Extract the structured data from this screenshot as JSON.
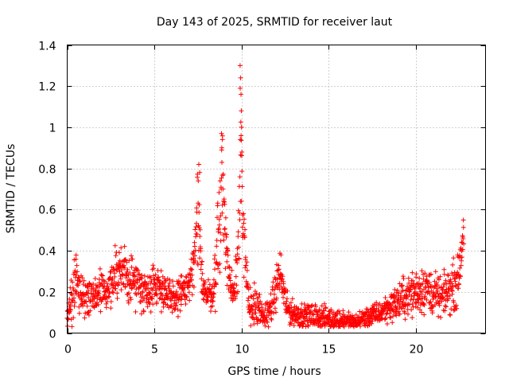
{
  "chart_data": {
    "type": "scatter",
    "title": "Day 143 of 2025, SRMTID for receiver laut",
    "xlabel": "GPS time / hours",
    "ylabel": "SRMTID / TECUs",
    "xlim": [
      0,
      24
    ],
    "ylim": [
      0,
      1.4
    ],
    "x_ticks": [
      0,
      5,
      10,
      15,
      20
    ],
    "y_ticks": [
      0,
      0.2,
      0.4,
      0.6,
      0.8,
      1,
      1.2,
      1.4
    ],
    "x_tick_labels": [
      "0",
      "5",
      "10",
      "15",
      "20"
    ],
    "y_tick_labels": [
      "0",
      "0.2",
      "0.4",
      "0.6",
      "0.8",
      "1",
      "1.2",
      "1.4"
    ],
    "grid": true,
    "marker": "plus",
    "color": "#ff0000",
    "series": [
      {
        "name": "SRMTID",
        "profile": [
          [
            0.0,
            0.08,
            0.07
          ],
          [
            0.3,
            0.15,
            0.1
          ],
          [
            0.5,
            0.3,
            0.12
          ],
          [
            0.7,
            0.22,
            0.08
          ],
          [
            1.0,
            0.17,
            0.06
          ],
          [
            1.5,
            0.18,
            0.06
          ],
          [
            2.0,
            0.2,
            0.07
          ],
          [
            2.5,
            0.25,
            0.08
          ],
          [
            3.0,
            0.3,
            0.1
          ],
          [
            3.5,
            0.27,
            0.08
          ],
          [
            4.0,
            0.25,
            0.08
          ],
          [
            4.5,
            0.2,
            0.07
          ],
          [
            5.0,
            0.24,
            0.07
          ],
          [
            5.5,
            0.22,
            0.07
          ],
          [
            6.0,
            0.15,
            0.06
          ],
          [
            6.5,
            0.2,
            0.07
          ],
          [
            7.0,
            0.22,
            0.06
          ],
          [
            7.3,
            0.35,
            0.1
          ],
          [
            7.5,
            0.55,
            0.2
          ],
          [
            7.7,
            0.3,
            0.1
          ],
          [
            8.0,
            0.18,
            0.05
          ],
          [
            8.4,
            0.2,
            0.06
          ],
          [
            8.7,
            0.5,
            0.2
          ],
          [
            8.9,
            0.75,
            0.2
          ],
          [
            9.1,
            0.45,
            0.15
          ],
          [
            9.3,
            0.25,
            0.08
          ],
          [
            9.6,
            0.2,
            0.05
          ],
          [
            9.8,
            0.45,
            0.2
          ],
          [
            9.95,
            0.95,
            0.3
          ],
          [
            10.1,
            0.45,
            0.15
          ],
          [
            10.4,
            0.15,
            0.07
          ],
          [
            10.8,
            0.12,
            0.07
          ],
          [
            11.3,
            0.07,
            0.04
          ],
          [
            11.8,
            0.15,
            0.06
          ],
          [
            12.2,
            0.3,
            0.08
          ],
          [
            12.6,
            0.12,
            0.05
          ],
          [
            13.0,
            0.09,
            0.04
          ],
          [
            14.0,
            0.08,
            0.04
          ],
          [
            15.0,
            0.07,
            0.04
          ],
          [
            16.0,
            0.06,
            0.03
          ],
          [
            16.5,
            0.05,
            0.03
          ],
          [
            17.0,
            0.07,
            0.03
          ],
          [
            18.0,
            0.1,
            0.04
          ],
          [
            18.5,
            0.13,
            0.05
          ],
          [
            19.0,
            0.15,
            0.06
          ],
          [
            19.5,
            0.18,
            0.07
          ],
          [
            20.0,
            0.2,
            0.08
          ],
          [
            20.5,
            0.22,
            0.08
          ],
          [
            21.0,
            0.19,
            0.07
          ],
          [
            21.5,
            0.17,
            0.06
          ],
          [
            22.0,
            0.22,
            0.08
          ],
          [
            22.4,
            0.25,
            0.08
          ],
          [
            22.6,
            0.38,
            0.06
          ],
          [
            22.75,
            0.52,
            0.06
          ]
        ]
      }
    ]
  }
}
